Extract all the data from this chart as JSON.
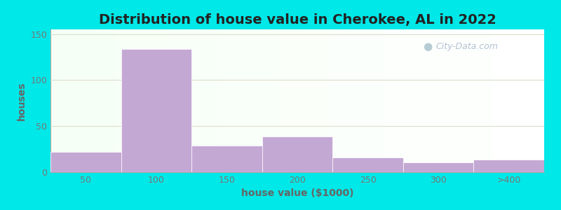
{
  "title": "Distribution of house value in Cherokee, AL in 2022",
  "xlabel": "house value ($1000)",
  "ylabel": "houses",
  "bar_labels": [
    "50",
    "100",
    "150",
    "200",
    "250",
    "300",
    ">400"
  ],
  "bar_values": [
    22,
    134,
    29,
    39,
    16,
    11,
    14
  ],
  "bar_color": "#c4a8d4",
  "bar_edgecolor": "#c4a8d4",
  "yticks": [
    0,
    50,
    100,
    150
  ],
  "ylim": [
    0,
    155
  ],
  "background_outer": "#00e8e8",
  "title_fontsize": 14,
  "axis_label_fontsize": 10,
  "tick_fontsize": 9,
  "watermark_text": "City-Data.com",
  "watermark_color": "#aabbcc",
  "grid_color": "#ddddcc",
  "tick_color": "#777777",
  "label_color": "#666666"
}
